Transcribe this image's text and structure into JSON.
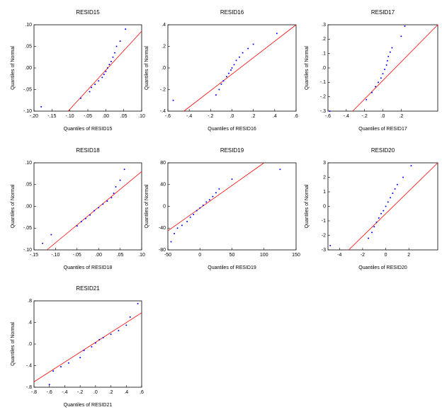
{
  "chart_data": [
    {
      "type": "qq",
      "title": "RESID15",
      "xlabel": "Quantiles of RESID15",
      "ylabel": "Quantiles of Normal",
      "point_color": "#0000ff",
      "line_color": "#ff0000",
      "xlim": [
        -0.2,
        0.1
      ],
      "ylim": [
        -0.1,
        0.1
      ],
      "xticks": [
        {
          "value": -0.2,
          "label": "-.20"
        },
        {
          "value": -0.15,
          "label": "-.15"
        },
        {
          "value": -0.1,
          "label": "-.10"
        },
        {
          "value": -0.05,
          "label": "-.05"
        },
        {
          "value": 0,
          "label": ".00"
        },
        {
          "value": 0.05,
          "label": ".05"
        },
        {
          "value": 0.1,
          "label": ".10"
        }
      ],
      "yticks": [
        {
          "value": -0.1,
          "label": "-.10"
        },
        {
          "value": -0.05,
          "label": "-.05"
        },
        {
          "value": 0,
          "label": ".00"
        },
        {
          "value": 0.05,
          "label": ".05"
        },
        {
          "value": 0.1,
          "label": ".10"
        }
      ],
      "x": [
        -0.18,
        -0.07,
        -0.045,
        -0.04,
        -0.03,
        -0.02,
        -0.01,
        -0.005,
        0.0,
        0.005,
        0.01,
        0.015,
        0.02,
        0.025,
        0.03,
        0.04,
        0.055
      ],
      "y": [
        -0.09,
        -0.07,
        -0.055,
        -0.045,
        -0.038,
        -0.03,
        -0.022,
        -0.015,
        -0.008,
        0.0,
        0.008,
        0.015,
        0.025,
        0.035,
        0.05,
        0.062,
        0.09
      ],
      "fit_line": {
        "x": [
          -0.105,
          0.1
        ],
        "y": [
          -0.1,
          0.085
        ]
      }
    },
    {
      "type": "qq",
      "title": "RESID16",
      "xlabel": "Quantiles of RESID16",
      "ylabel": "Quantiles of Normal",
      "point_color": "#0000ff",
      "line_color": "#ff0000",
      "xlim": [
        -0.6,
        0.6
      ],
      "ylim": [
        -0.4,
        0.4
      ],
      "xticks": [
        {
          "value": -0.6,
          "label": "-.6"
        },
        {
          "value": -0.4,
          "label": "-.4"
        },
        {
          "value": -0.2,
          "label": "-.2"
        },
        {
          "value": 0,
          "label": ".0"
        },
        {
          "value": 0.2,
          "label": ".2"
        },
        {
          "value": 0.4,
          "label": ".4"
        },
        {
          "value": 0.6,
          "label": ".6"
        }
      ],
      "yticks": [
        {
          "value": -0.4,
          "label": "-.4"
        },
        {
          "value": -0.2,
          "label": "-.2"
        },
        {
          "value": 0,
          "label": ".0"
        },
        {
          "value": 0.2,
          "label": ".2"
        },
        {
          "value": 0.4,
          "label": ".4"
        }
      ],
      "x": [
        -0.55,
        -0.15,
        -0.12,
        -0.1,
        -0.08,
        -0.05,
        -0.03,
        -0.01,
        0.0,
        0.02,
        0.04,
        0.07,
        0.1,
        0.15,
        0.2,
        0.42
      ],
      "y": [
        -0.3,
        -0.25,
        -0.2,
        -0.15,
        -0.12,
        -0.08,
        -0.05,
        -0.02,
        0.0,
        0.03,
        0.07,
        0.1,
        0.14,
        0.18,
        0.22,
        0.32
      ],
      "fit_line": {
        "x": [
          -0.45,
          0.6
        ],
        "y": [
          -0.4,
          0.4
        ]
      }
    },
    {
      "type": "qq",
      "title": "RESID17",
      "xlabel": "Quantiles of RESID17",
      "ylabel": "Quantiles of Normal",
      "point_color": "#0000ff",
      "line_color": "#ff0000",
      "xlim": [
        -0.6,
        0.6
      ],
      "ylim": [
        -0.3,
        0.3
      ],
      "xticks": [
        {
          "value": -0.6,
          "label": "-.6"
        },
        {
          "value": -0.4,
          "label": "-.4"
        },
        {
          "value": -0.2,
          "label": "-.2"
        },
        {
          "value": 0,
          "label": ".0"
        },
        {
          "value": 0.2,
          "label": ".2"
        }
      ],
      "yticks": [
        {
          "value": -0.3,
          "label": "-.3"
        },
        {
          "value": -0.2,
          "label": "-.2"
        },
        {
          "value": -0.1,
          "label": "-.1"
        },
        {
          "value": 0,
          "label": ".0"
        },
        {
          "value": 0.1,
          "label": ".1"
        },
        {
          "value": 0.2,
          "label": ".2"
        },
        {
          "value": 0.3,
          "label": ".3"
        }
      ],
      "x": [
        -0.58,
        -0.18,
        -0.12,
        -0.08,
        -0.05,
        -0.02,
        0.0,
        0.02,
        0.04,
        0.05,
        0.06,
        0.08,
        0.1,
        0.2,
        0.24
      ],
      "y": [
        -0.3,
        -0.22,
        -0.17,
        -0.13,
        -0.1,
        -0.07,
        -0.04,
        -0.01,
        0.02,
        0.05,
        0.08,
        0.11,
        0.14,
        0.22,
        0.29
      ],
      "fit_line": {
        "x": [
          -0.33,
          0.6
        ],
        "y": [
          -0.3,
          0.3
        ]
      }
    },
    {
      "type": "qq",
      "title": "RESID18",
      "xlabel": "Quantiles of RESID18",
      "ylabel": "Quantiles of Normal",
      "point_color": "#0000ff",
      "line_color": "#ff0000",
      "xlim": [
        -0.15,
        0.1
      ],
      "ylim": [
        -0.1,
        0.1
      ],
      "xticks": [
        {
          "value": -0.15,
          "label": "-.15"
        },
        {
          "value": -0.1,
          "label": "-.10"
        },
        {
          "value": -0.05,
          "label": "-.05"
        },
        {
          "value": 0,
          "label": ".00"
        },
        {
          "value": 0.05,
          "label": ".05"
        },
        {
          "value": 0.1,
          "label": ".10"
        }
      ],
      "yticks": [
        {
          "value": -0.1,
          "label": "-.10"
        },
        {
          "value": -0.05,
          "label": "-.05"
        },
        {
          "value": 0,
          "label": ".00"
        },
        {
          "value": 0.05,
          "label": ".05"
        },
        {
          "value": 0.1,
          "label": ".10"
        }
      ],
      "x": [
        -0.13,
        -0.11,
        -0.05,
        -0.04,
        -0.03,
        -0.02,
        -0.01,
        0.0,
        0.01,
        0.02,
        0.03,
        0.035,
        0.04,
        0.05,
        0.06
      ],
      "y": [
        -0.085,
        -0.065,
        -0.045,
        -0.035,
        -0.028,
        -0.02,
        -0.01,
        -0.003,
        0.005,
        0.012,
        0.02,
        0.03,
        0.045,
        0.06,
        0.085
      ],
      "fit_line": {
        "x": [
          -0.12,
          0.1
        ],
        "y": [
          -0.1,
          0.08
        ]
      }
    },
    {
      "type": "qq",
      "title": "RESID19",
      "xlabel": "Quantiles of RESID19",
      "ylabel": "Quantiles of Normal",
      "point_color": "#0000ff",
      "line_color": "#ff0000",
      "xlim": [
        -50,
        150
      ],
      "ylim": [
        -80,
        80
      ],
      "xticks": [
        -50,
        0,
        50,
        100,
        150
      ],
      "yticks": [
        -80,
        -40,
        0,
        40,
        80
      ],
      "x": [
        -45,
        -40,
        -35,
        -28,
        -20,
        -15,
        -10,
        -5,
        0,
        5,
        10,
        15,
        20,
        25,
        30,
        50,
        125
      ],
      "y": [
        -65,
        -50,
        -40,
        -35,
        -28,
        -20,
        -15,
        -8,
        -3,
        2,
        8,
        12,
        18,
        25,
        32,
        50,
        68
      ],
      "fit_line": {
        "x": [
          -50,
          100
        ],
        "y": [
          -45,
          80
        ]
      }
    },
    {
      "type": "qq",
      "title": "RESID20",
      "xlabel": "Quantiles of RESID20",
      "ylabel": "Quantiles of Normal",
      "point_color": "#0000ff",
      "line_color": "#ff0000",
      "xlim": [
        -5,
        4.5
      ],
      "ylim": [
        -3,
        3
      ],
      "xticks": [
        -4,
        -2,
        0,
        2
      ],
      "yticks": [
        -3,
        -2,
        -1,
        0,
        1,
        2,
        3
      ],
      "x": [
        -4.8,
        -1.5,
        -1.2,
        -1,
        -0.8,
        -0.6,
        -0.4,
        -0.2,
        0,
        0.2,
        0.4,
        0.6,
        0.8,
        1,
        1.5,
        2.2
      ],
      "y": [
        -2.7,
        -2.2,
        -1.8,
        -1.4,
        -1.1,
        -0.8,
        -0.5,
        -0.3,
        0,
        0.3,
        0.6,
        0.9,
        1.2,
        1.5,
        2,
        2.8
      ],
      "fit_line": {
        "x": [
          -3.2,
          4.5
        ],
        "y": [
          -3,
          3
        ]
      }
    },
    {
      "type": "qq",
      "title": "RESID21",
      "xlabel": "Quantiles of RESID21",
      "ylabel": "Quantiles of Normal",
      "point_color": "#0000ff",
      "line_color": "#ff0000",
      "xlim": [
        -0.8,
        0.6
      ],
      "ylim": [
        -0.8,
        0.8
      ],
      "xticks": [
        {
          "value": -0.8,
          "label": "-.8"
        },
        {
          "value": -0.6,
          "label": "-.6"
        },
        {
          "value": -0.4,
          "label": "-.4"
        },
        {
          "value": -0.2,
          "label": "-.2"
        },
        {
          "value": 0,
          "label": ".0"
        },
        {
          "value": 0.2,
          "label": ".2"
        },
        {
          "value": 0.4,
          "label": ".4"
        },
        {
          "value": 0.6,
          "label": ".6"
        }
      ],
      "yticks": [
        {
          "value": -0.8,
          "label": "-.8"
        },
        {
          "value": -0.4,
          "label": "-.4"
        },
        {
          "value": 0,
          "label": ".0"
        },
        {
          "value": 0.4,
          "label": ".4"
        },
        {
          "value": 0.8,
          "label": ".8"
        }
      ],
      "x": [
        -0.6,
        -0.55,
        -0.45,
        -0.35,
        -0.2,
        -0.15,
        -0.05,
        0,
        0.05,
        0.1,
        0.2,
        0.3,
        0.4,
        0.45,
        0.55
      ],
      "y": [
        -0.75,
        -0.5,
        -0.42,
        -0.35,
        -0.25,
        -0.12,
        -0.05,
        0.02,
        0.08,
        0.12,
        0.18,
        0.25,
        0.35,
        0.5,
        0.75
      ],
      "fit_line": {
        "x": [
          -0.8,
          0.6
        ],
        "y": [
          -0.7,
          0.58
        ]
      }
    }
  ]
}
